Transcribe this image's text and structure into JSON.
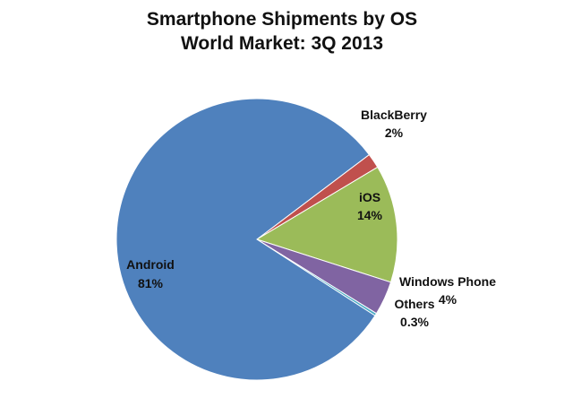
{
  "chart_data": {
    "type": "pie",
    "title": "Smartphone Shipments by OS",
    "subtitle": "World Market: 3Q 2013",
    "slices": [
      {
        "label": "BlackBerry",
        "value_label": "2%",
        "value": 1.7,
        "color": "#C0504D"
      },
      {
        "label": "iOS",
        "value_label": "14%",
        "value": 13.5,
        "color": "#9BBB59"
      },
      {
        "label": "Windows Phone",
        "value_label": "4%",
        "value": 3.9,
        "color": "#8064A2"
      },
      {
        "label": "Others",
        "value_label": "0.3%",
        "value": 0.3,
        "color": "#4BACC6"
      },
      {
        "label": "Android",
        "value_label": "81%",
        "value": 80.6,
        "color": "#4F81BD"
      }
    ]
  }
}
